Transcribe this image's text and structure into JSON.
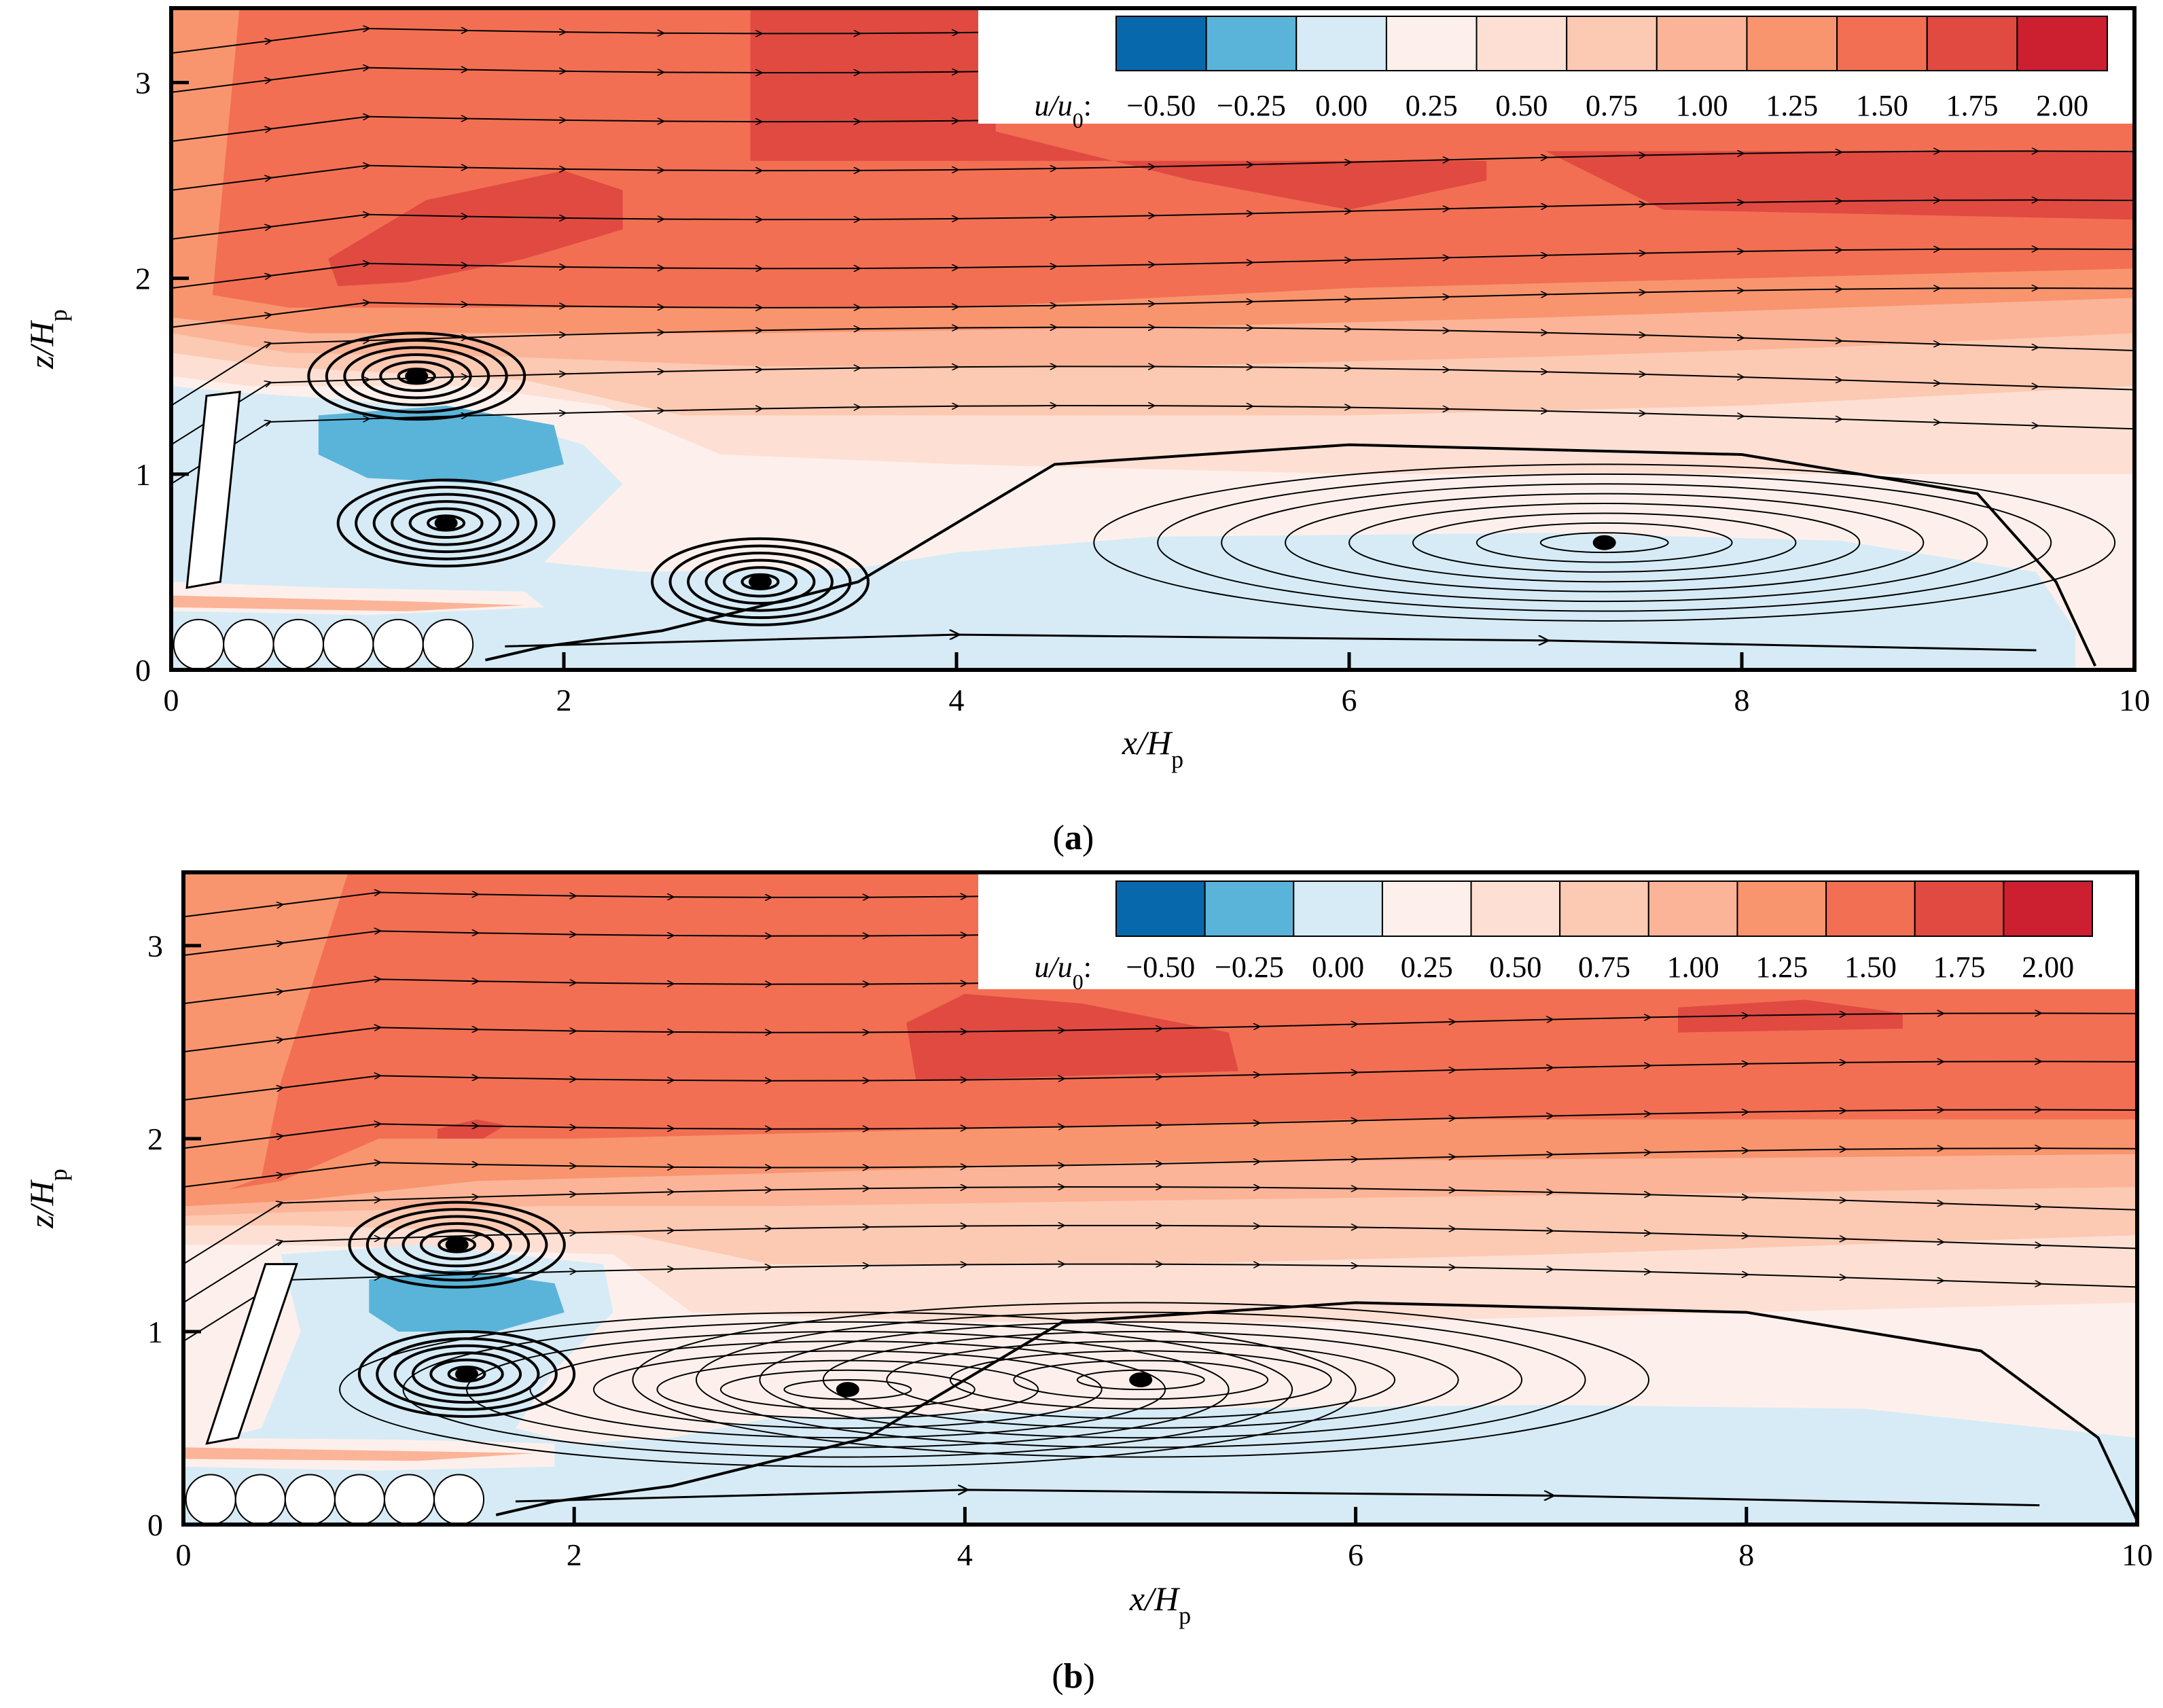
{
  "chart_data": [
    {
      "type": "heatmap",
      "panel_label": "a",
      "xlabel_main": "x/H",
      "xlabel_sub": "p",
      "ylabel_main": "z/H",
      "ylabel_sub": "p",
      "xlim": [
        0,
        10
      ],
      "ylim": [
        0,
        3.38
      ],
      "xticks": [
        0,
        2,
        4,
        6,
        8,
        10
      ],
      "yticks": [
        0,
        1,
        2,
        3
      ],
      "colorbar": {
        "label_main": "u/u",
        "label_sub": "0",
        "label_suffix": ":",
        "levels": [
          -0.5,
          -0.25,
          0.0,
          0.25,
          0.5,
          0.75,
          1.0,
          1.25,
          1.5,
          1.75,
          2.0
        ],
        "tick_labels": [
          "−0.50",
          "−0.25",
          "0.00",
          "0.25",
          "0.50",
          "0.75",
          "1.00",
          "1.25",
          "1.50",
          "1.75",
          "2.00"
        ],
        "colors": [
          "#0868ac",
          "#5ab4d9",
          "#d6ebf5",
          "#fdf0ec",
          "#fde0d3",
          "#fcc9b2",
          "#fbb497",
          "#f8956e",
          "#f26f53",
          "#e04a41",
          "#cc1f2f"
        ]
      },
      "vortices": [
        {
          "x": 1.25,
          "z": 1.5
        },
        {
          "x": 1.4,
          "z": 0.75
        },
        {
          "x": 3.0,
          "z": 0.45
        },
        {
          "x": 7.3,
          "z": 0.65
        }
      ],
      "recirculation_reattachment_x": 9.8
    },
    {
      "type": "heatmap",
      "panel_label": "b",
      "xlabel_main": "x/H",
      "xlabel_sub": "p",
      "ylabel_main": "z/H",
      "ylabel_sub": "p",
      "xlim": [
        0,
        10
      ],
      "ylim": [
        0,
        3.38
      ],
      "xticks": [
        0,
        2,
        4,
        6,
        8,
        10
      ],
      "yticks": [
        0,
        1,
        2,
        3
      ],
      "colorbar": {
        "label_main": "u/u",
        "label_sub": "0",
        "label_suffix": ":",
        "levels": [
          -0.5,
          -0.25,
          0.0,
          0.25,
          0.5,
          0.75,
          1.0,
          1.25,
          1.5,
          1.75,
          2.0
        ],
        "tick_labels": [
          "−0.50",
          "−0.25",
          "0.00",
          "0.25",
          "0.50",
          "0.75",
          "1.00",
          "1.25",
          "1.50",
          "1.75",
          "2.00"
        ],
        "colors": [
          "#0868ac",
          "#5ab4d9",
          "#d6ebf5",
          "#fdf0ec",
          "#fde0d3",
          "#fcc9b2",
          "#fbb497",
          "#f8956e",
          "#f26f53",
          "#e04a41",
          "#cc1f2f"
        ]
      },
      "vortices": [
        {
          "x": 1.4,
          "z": 1.45
        },
        {
          "x": 1.45,
          "z": 0.78
        },
        {
          "x": 3.4,
          "z": 0.7
        },
        {
          "x": 4.9,
          "z": 0.75
        }
      ],
      "recirculation_reattachment_x": 10.0
    }
  ]
}
